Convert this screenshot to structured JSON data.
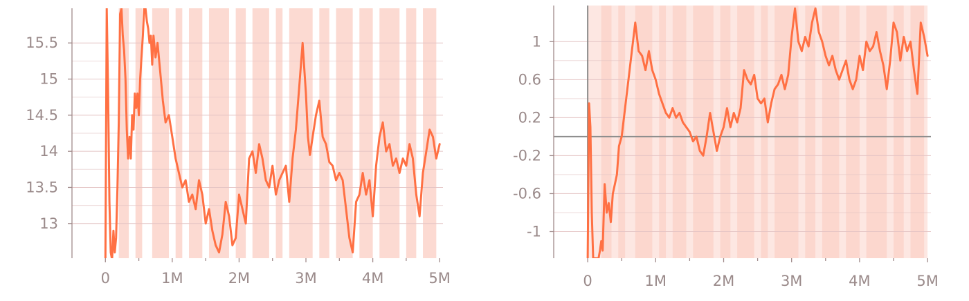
{
  "chart_data": [
    {
      "type": "line",
      "title": "",
      "xlabel": "",
      "ylabel": "",
      "xlim": [
        -0.5,
        5.05
      ],
      "ylim": [
        12.52,
        15.98
      ],
      "x_ticks": [
        0,
        1,
        2,
        3,
        4,
        5
      ],
      "x_tick_labels": [
        "0",
        "1M",
        "2M",
        "3M",
        "4M",
        "5M"
      ],
      "y_ticks": [
        13,
        13.5,
        14,
        14.5,
        15,
        15.5
      ],
      "y_tick_labels": [
        "13",
        "13.5",
        "14",
        "14.5",
        "15",
        "15.5"
      ],
      "grid": true,
      "line_color": "#ff7043",
      "band_color": "#fbd3ca",
      "series": [
        {
          "x": [
            0,
            0.02,
            0.04,
            0.06,
            0.08,
            0.1,
            0.12,
            0.14,
            0.16,
            0.18,
            0.2,
            0.22,
            0.24,
            0.26,
            0.28,
            0.3,
            0.32,
            0.34,
            0.36,
            0.38,
            0.4,
            0.42,
            0.44,
            0.46,
            0.48,
            0.5,
            0.52,
            0.54,
            0.56,
            0.58,
            0.6,
            0.62,
            0.64,
            0.66,
            0.68,
            0.7,
            0.72,
            0.75,
            0.78,
            0.82,
            0.86,
            0.9,
            0.95,
            1.0,
            1.05,
            1.1,
            1.15,
            1.2,
            1.25,
            1.3,
            1.35,
            1.4,
            1.45,
            1.5,
            1.55,
            1.6,
            1.65,
            1.7,
            1.75,
            1.8,
            1.85,
            1.9,
            1.95,
            2.0,
            2.05,
            2.1,
            2.15,
            2.2,
            2.25,
            2.3,
            2.35,
            2.4,
            2.45,
            2.5,
            2.55,
            2.6,
            2.65,
            2.7,
            2.75,
            2.8,
            2.85,
            2.9,
            2.95,
            3.0,
            3.03,
            3.06,
            3.1,
            3.15,
            3.2,
            3.25,
            3.3,
            3.35,
            3.4,
            3.45,
            3.5,
            3.55,
            3.6,
            3.65,
            3.7,
            3.75,
            3.8,
            3.85,
            3.9,
            3.95,
            4.0,
            4.05,
            4.1,
            4.15,
            4.2,
            4.25,
            4.3,
            4.35,
            4.4,
            4.45,
            4.5,
            4.55,
            4.6,
            4.65,
            4.7,
            4.75,
            4.8,
            4.85,
            4.9,
            4.95,
            5.0
          ],
          "y": [
            12.5,
            15.98,
            14.8,
            13.3,
            12.6,
            12.5,
            12.9,
            12.6,
            12.8,
            13.5,
            14.4,
            15.9,
            15.98,
            15.6,
            15.4,
            15.0,
            14.3,
            13.9,
            14.2,
            13.9,
            14.5,
            14.3,
            14.8,
            14.6,
            14.8,
            14.5,
            15.0,
            15.3,
            15.6,
            15.98,
            15.98,
            15.8,
            15.7,
            15.5,
            15.6,
            15.2,
            15.6,
            15.3,
            15.5,
            15.1,
            14.7,
            14.4,
            14.5,
            14.2,
            13.9,
            13.7,
            13.5,
            13.6,
            13.3,
            13.4,
            13.2,
            13.6,
            13.4,
            13.0,
            13.2,
            12.9,
            12.7,
            12.6,
            12.85,
            13.3,
            13.1,
            12.7,
            12.8,
            13.4,
            13.2,
            13.0,
            13.9,
            14.0,
            13.7,
            14.1,
            13.9,
            13.6,
            13.5,
            13.8,
            13.4,
            13.6,
            13.7,
            13.8,
            13.3,
            13.9,
            14.3,
            14.9,
            15.5,
            14.8,
            14.2,
            13.95,
            14.2,
            14.5,
            14.7,
            14.2,
            14.1,
            13.85,
            13.8,
            13.6,
            13.7,
            13.6,
            13.2,
            12.8,
            12.6,
            13.3,
            13.4,
            13.7,
            13.4,
            13.6,
            13.1,
            13.8,
            14.2,
            14.4,
            14.0,
            14.1,
            13.8,
            13.9,
            13.7,
            13.9,
            13.8,
            14.1,
            13.9,
            13.4,
            13.1,
            13.7,
            14.0,
            14.3,
            14.2,
            13.9,
            14.1
          ]
        }
      ]
    },
    {
      "type": "line",
      "title": "",
      "xlabel": "",
      "ylabel": "",
      "xlim": [
        -0.5,
        5.05
      ],
      "ylim": [
        -1.28,
        1.38
      ],
      "x_ticks": [
        0,
        1,
        2,
        3,
        4,
        5
      ],
      "x_tick_labels": [
        "0",
        "1M",
        "2M",
        "3M",
        "4M",
        "5M"
      ],
      "y_ticks": [
        -1,
        -0.6,
        -0.2,
        0.2,
        0.6,
        1
      ],
      "y_tick_labels": [
        "-1",
        "-0.6",
        "-0.2",
        "0.2",
        "0.6",
        "1"
      ],
      "zero_line": 0,
      "grid": true,
      "line_color": "#ff7043",
      "band_color": "#fbd3ca",
      "series": [
        {
          "x": [
            0,
            0.02,
            0.04,
            0.06,
            0.08,
            0.1,
            0.12,
            0.14,
            0.16,
            0.18,
            0.2,
            0.22,
            0.25,
            0.28,
            0.31,
            0.34,
            0.37,
            0.4,
            0.43,
            0.46,
            0.5,
            0.55,
            0.6,
            0.65,
            0.7,
            0.75,
            0.8,
            0.85,
            0.9,
            0.95,
            1.0,
            1.05,
            1.1,
            1.15,
            1.2,
            1.25,
            1.3,
            1.35,
            1.4,
            1.45,
            1.5,
            1.55,
            1.6,
            1.65,
            1.7,
            1.75,
            1.8,
            1.85,
            1.9,
            1.95,
            2.0,
            2.05,
            2.1,
            2.15,
            2.2,
            2.25,
            2.3,
            2.35,
            2.4,
            2.45,
            2.5,
            2.55,
            2.6,
            2.65,
            2.7,
            2.75,
            2.8,
            2.85,
            2.9,
            2.95,
            3.0,
            3.05,
            3.1,
            3.15,
            3.2,
            3.25,
            3.3,
            3.35,
            3.4,
            3.45,
            3.5,
            3.55,
            3.6,
            3.65,
            3.7,
            3.75,
            3.8,
            3.85,
            3.9,
            3.95,
            4.0,
            4.05,
            4.1,
            4.15,
            4.2,
            4.25,
            4.3,
            4.35,
            4.4,
            4.45,
            4.5,
            4.55,
            4.6,
            4.65,
            4.7,
            4.75,
            4.8,
            4.85,
            4.9,
            4.95,
            5.0
          ],
          "y": [
            -1.28,
            0.35,
            0.1,
            -0.8,
            -1.28,
            -1.28,
            -1.28,
            -1.28,
            -1.28,
            -1.2,
            -1.1,
            -1.2,
            -0.5,
            -0.8,
            -0.7,
            -0.9,
            -0.6,
            -0.5,
            -0.4,
            -0.1,
            0.0,
            0.3,
            0.6,
            0.9,
            1.2,
            0.9,
            0.85,
            0.7,
            0.9,
            0.7,
            0.6,
            0.45,
            0.35,
            0.25,
            0.2,
            0.3,
            0.2,
            0.25,
            0.15,
            0.1,
            0.05,
            -0.05,
            0.0,
            -0.15,
            -0.2,
            0.0,
            0.25,
            0.05,
            -0.15,
            0.0,
            0.1,
            0.3,
            0.1,
            0.25,
            0.15,
            0.3,
            0.7,
            0.6,
            0.55,
            0.65,
            0.4,
            0.35,
            0.4,
            0.15,
            0.35,
            0.5,
            0.55,
            0.65,
            0.5,
            0.65,
            1.05,
            1.35,
            1.0,
            0.9,
            1.05,
            0.95,
            1.2,
            1.35,
            1.1,
            1.0,
            0.85,
            0.75,
            0.85,
            0.7,
            0.6,
            0.7,
            0.8,
            0.6,
            0.5,
            0.6,
            0.85,
            0.7,
            1.0,
            0.9,
            0.95,
            1.1,
            0.9,
            0.75,
            0.5,
            0.8,
            1.2,
            1.1,
            0.8,
            1.05,
            0.9,
            1.0,
            0.7,
            0.45,
            1.2,
            1.05,
            0.85
          ]
        }
      ]
    }
  ]
}
